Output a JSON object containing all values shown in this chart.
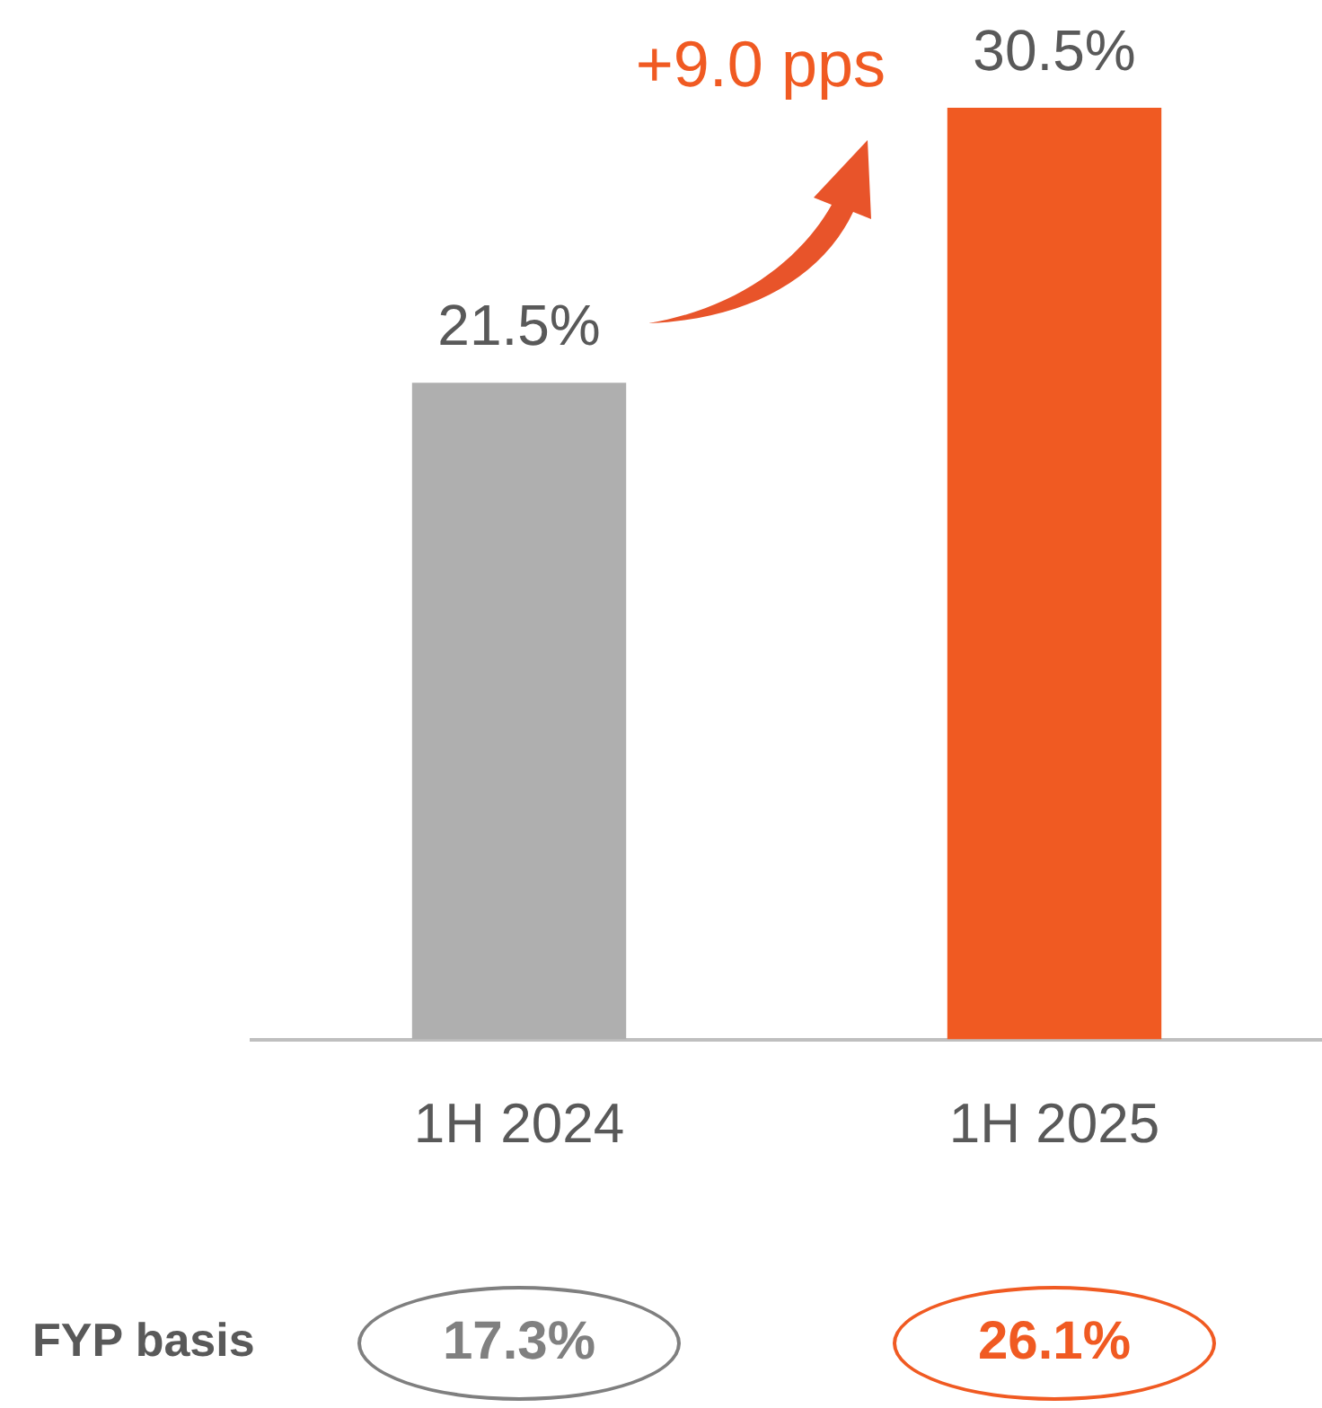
{
  "chart_data": {
    "type": "bar",
    "categories": [
      "1H 2024",
      "1H 2025"
    ],
    "values": [
      21.5,
      30.5
    ],
    "colors": [
      "#afafaf",
      "#f05a22"
    ],
    "value_labels": [
      "21.5%",
      "30.5%"
    ],
    "grid": false,
    "legend": false,
    "tick_labels": "x",
    "annotations": [
      "+9.0 pps",
      "FYP basis",
      "17.3%",
      "26.1%"
    ]
  }
}
